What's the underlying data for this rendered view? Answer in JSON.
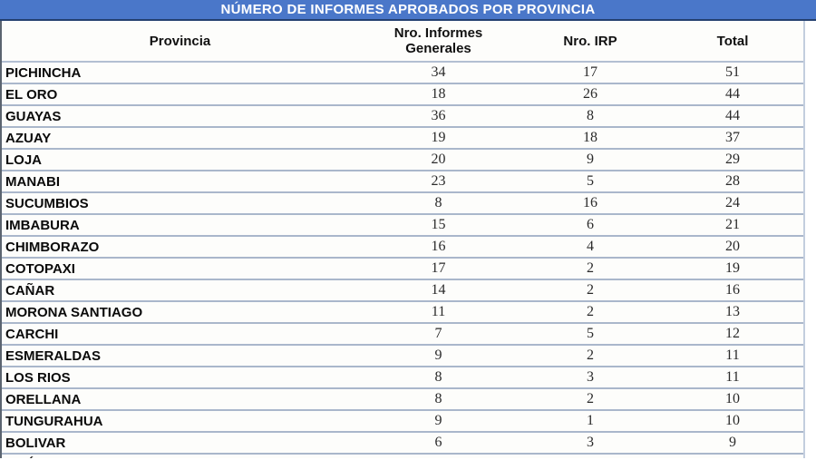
{
  "title": "NÚMERO DE INFORMES APROBADOS POR PROVINCIA",
  "table": {
    "columns": [
      "Provincia",
      "Nro. Informes Generales",
      "Nro. IRP",
      "Total"
    ],
    "rows": [
      {
        "provincia": "PICHINCHA",
        "generales": "34",
        "irp": "17",
        "total": "51"
      },
      {
        "provincia": "EL ORO",
        "generales": "18",
        "irp": "26",
        "total": "44"
      },
      {
        "provincia": "GUAYAS",
        "generales": "36",
        "irp": "8",
        "total": "44"
      },
      {
        "provincia": "AZUAY",
        "generales": "19",
        "irp": "18",
        "total": "37"
      },
      {
        "provincia": "LOJA",
        "generales": "20",
        "irp": "9",
        "total": "29"
      },
      {
        "provincia": "MANABI",
        "generales": "23",
        "irp": "5",
        "total": "28"
      },
      {
        "provincia": "SUCUMBIOS",
        "generales": "8",
        "irp": "16",
        "total": "24"
      },
      {
        "provincia": "IMBABURA",
        "generales": "15",
        "irp": "6",
        "total": "21"
      },
      {
        "provincia": "CHIMBORAZO",
        "generales": "16",
        "irp": "4",
        "total": "20"
      },
      {
        "provincia": "COTOPAXI",
        "generales": "17",
        "irp": "2",
        "total": "19"
      },
      {
        "provincia": "CAÑAR",
        "generales": "14",
        "irp": "2",
        "total": "16"
      },
      {
        "provincia": "MORONA SANTIAGO",
        "generales": "11",
        "irp": "2",
        "total": "13"
      },
      {
        "provincia": "CARCHI",
        "generales": "7",
        "irp": "5",
        "total": "12"
      },
      {
        "provincia": "ESMERALDAS",
        "generales": "9",
        "irp": "2",
        "total": "11"
      },
      {
        "provincia": "LOS RIOS",
        "generales": "8",
        "irp": "3",
        "total": "11"
      },
      {
        "provincia": "ORELLANA",
        "generales": "8",
        "irp": "2",
        "total": "10"
      },
      {
        "provincia": "TUNGURAHUA",
        "generales": "9",
        "irp": "1",
        "total": "10"
      },
      {
        "provincia": "BOLIVAR",
        "generales": "6",
        "irp": "3",
        "total": "9"
      }
    ]
  },
  "partial_row_glyph": "´",
  "colors": {
    "title_bar_bg": "#4a77c9",
    "title_bar_border": "#24406f",
    "title_text": "#ffffff",
    "row_separator": "#aab7cb",
    "text": "#111111"
  }
}
